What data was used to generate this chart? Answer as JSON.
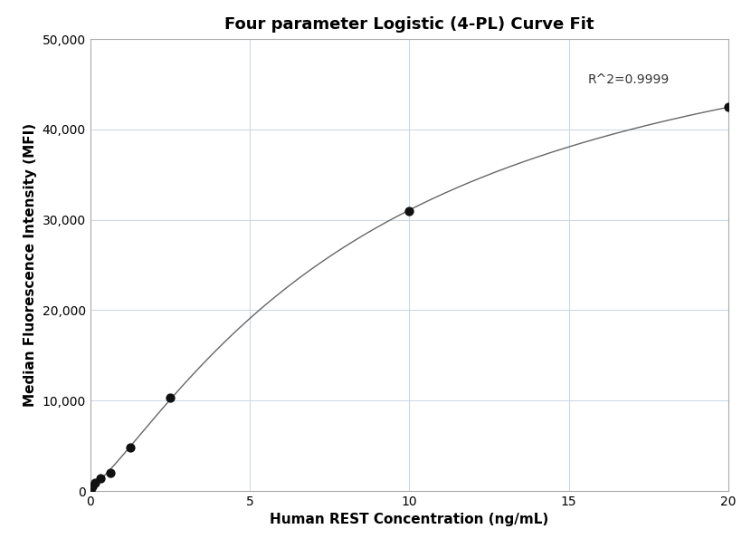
{
  "title": "Four parameter Logistic (4-PL) Curve Fit",
  "xlabel": "Human REST Concentration (ng/mL)",
  "ylabel": "Median Fluorescence Intensity (MFI)",
  "scatter_x": [
    0.0,
    0.08,
    0.16,
    0.31,
    0.63,
    1.25,
    2.5,
    10.0,
    20.0
  ],
  "scatter_y": [
    0,
    500,
    900,
    1400,
    2000,
    4800,
    10300,
    31000,
    42500
  ],
  "curve_4pl_A": 200,
  "curve_4pl_B": 0.62,
  "curve_4pl_C": 55000,
  "curve_4pl_D": 0.0,
  "xlim": [
    0,
    20
  ],
  "ylim": [
    0,
    50000
  ],
  "yticks": [
    0,
    10000,
    20000,
    30000,
    40000,
    50000
  ],
  "xticks": [
    0,
    5,
    10,
    15,
    20
  ],
  "r2_text": "R^2=0.9999",
  "r2_x": 15.6,
  "r2_y": 44800,
  "dot_color": "#111111",
  "line_color": "#666666",
  "grid_color": "#c8d4e3",
  "bg_color": "#ffffff",
  "title_fontsize": 13,
  "label_fontsize": 11,
  "tick_fontsize": 10,
  "annotation_fontsize": 10
}
